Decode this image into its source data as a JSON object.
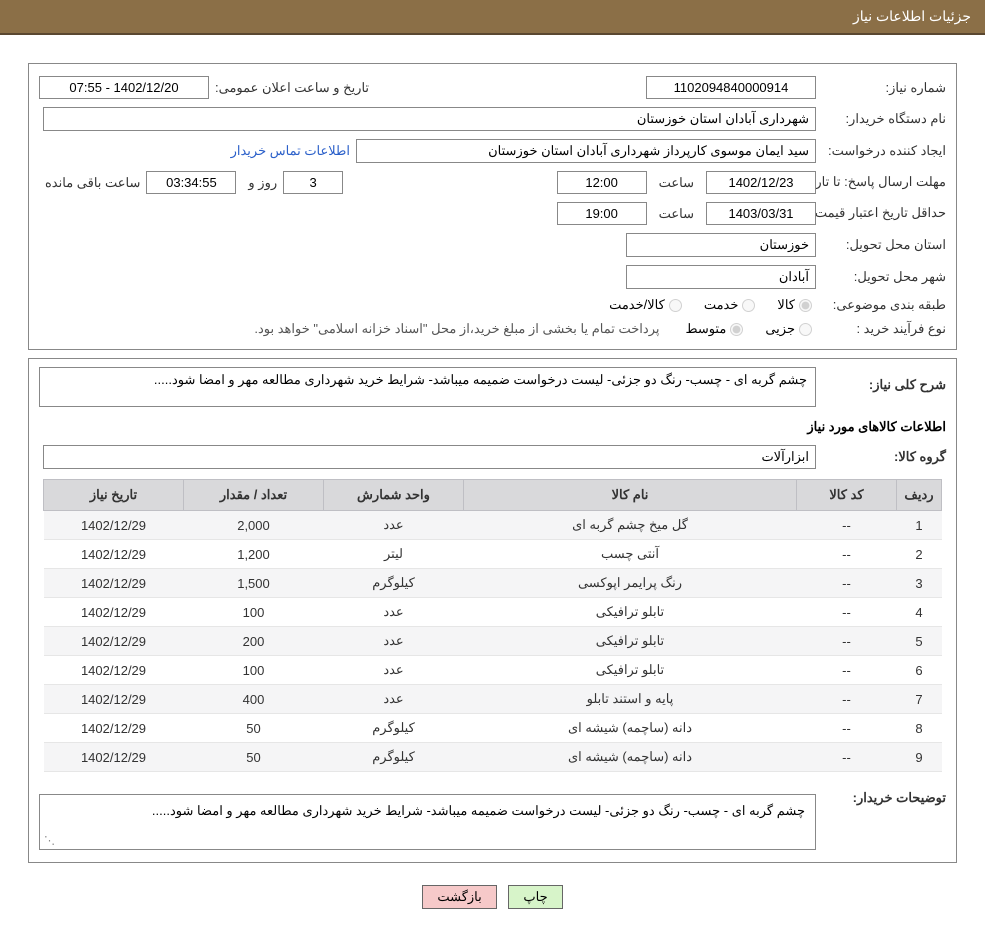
{
  "header": {
    "title": "جزئیات اطلاعات نیاز"
  },
  "labels": {
    "need_no": "شماره نیاز:",
    "announce_datetime": "تاریخ و ساعت اعلان عمومی:",
    "buyer_org": "نام دستگاه خریدار:",
    "requester": "ایجاد کننده درخواست:",
    "contact_info": "اطلاعات تماس خریدار",
    "response_deadline": "مهلت ارسال پاسخ:",
    "until_date": "تا تاریخ:",
    "hour": "ساعت",
    "days_and": "روز و",
    "hours_remain": "ساعت باقی مانده",
    "price_validity": "حداقل تاریخ اعتبار قیمت:",
    "delivery_province": "استان محل تحویل:",
    "delivery_city": "شهر محل تحویل:",
    "subject_class": "طبقه بندی موضوعی:",
    "class_goods": "کالا",
    "class_service": "خدمت",
    "class_goods_service": "کالا/خدمت",
    "purchase_process": "نوع فرآیند خرید :",
    "proc_minor": "جزیی",
    "proc_medium": "متوسط",
    "payment_note": "پرداخت تمام یا بخشی از مبلغ خرید،از محل \"اسناد خزانه اسلامی\" خواهد بود.",
    "general_desc": "شرح کلی نیاز:",
    "items_info": "اطلاعات کالاهای مورد نیاز",
    "goods_group": "گروه کالا:",
    "buyer_notes": "توضیحات خریدار:"
  },
  "values": {
    "need_no": "1102094840000914",
    "announce_datetime": "1402/12/20 - 07:55",
    "buyer_org": "شهرداری آبادان استان خوزستان",
    "requester": "سید ایمان موسوی کارپرداز شهرداری آبادان استان خوزستان",
    "resp_date": "1402/12/23",
    "resp_hour": "12:00",
    "days_left": "3",
    "hours_left": "03:34:55",
    "validity_date": "1403/03/31",
    "validity_hour": "19:00",
    "province": "خوزستان",
    "city": "آبادان",
    "general_desc": "چشم گربه ای - چسب- رنگ دو جزئی- لیست درخواست ضمیمه میباشد- شرایط خرید شهرداری مطالعه مهر و امضا شود.....",
    "goods_group": "ابزارآلات",
    "buyer_notes": "چشم گربه ای - چسب- رنگ دو جزئی- لیست درخواست ضمیمه میباشد- شرایط خرید شهرداری مطالعه مهر و امضا شود....."
  },
  "table": {
    "headers": {
      "idx": "ردیف",
      "code": "کد کالا",
      "name": "نام کالا",
      "unit": "واحد شمارش",
      "qty": "تعداد / مقدار",
      "date": "تاریخ نیاز"
    },
    "rows": [
      {
        "idx": "1",
        "code": "--",
        "name": "گل میخ چشم گربه ای",
        "unit": "عدد",
        "qty": "2,000",
        "date": "1402/12/29"
      },
      {
        "idx": "2",
        "code": "--",
        "name": "آنتی چسب",
        "unit": "لیتر",
        "qty": "1,200",
        "date": "1402/12/29"
      },
      {
        "idx": "3",
        "code": "--",
        "name": "رنگ پرایمر اپوکسی",
        "unit": "کیلوگرم",
        "qty": "1,500",
        "date": "1402/12/29"
      },
      {
        "idx": "4",
        "code": "--",
        "name": "تابلو ترافیکی",
        "unit": "عدد",
        "qty": "100",
        "date": "1402/12/29"
      },
      {
        "idx": "5",
        "code": "--",
        "name": "تابلو ترافیکی",
        "unit": "عدد",
        "qty": "200",
        "date": "1402/12/29"
      },
      {
        "idx": "6",
        "code": "--",
        "name": "تابلو ترافیکی",
        "unit": "عدد",
        "qty": "100",
        "date": "1402/12/29"
      },
      {
        "idx": "7",
        "code": "--",
        "name": "پایه و استند تابلو",
        "unit": "عدد",
        "qty": "400",
        "date": "1402/12/29"
      },
      {
        "idx": "8",
        "code": "--",
        "name": "دانه (ساچمه) شیشه ای",
        "unit": "کیلوگرم",
        "qty": "50",
        "date": "1402/12/29"
      },
      {
        "idx": "9",
        "code": "--",
        "name": "دانه (ساچمه) شیشه ای",
        "unit": "کیلوگرم",
        "qty": "50",
        "date": "1402/12/29"
      }
    ]
  },
  "buttons": {
    "print": "چاپ",
    "back": "بازگشت"
  },
  "colors": {
    "header_bg": "#8b6f47",
    "border": "#888888",
    "th_bg": "#d9d9db",
    "row_alt": "#f5f5f6",
    "link": "#2a5fc9",
    "btn_print_bg": "#d7f4c9",
    "btn_back_bg": "#f6c9c9"
  }
}
